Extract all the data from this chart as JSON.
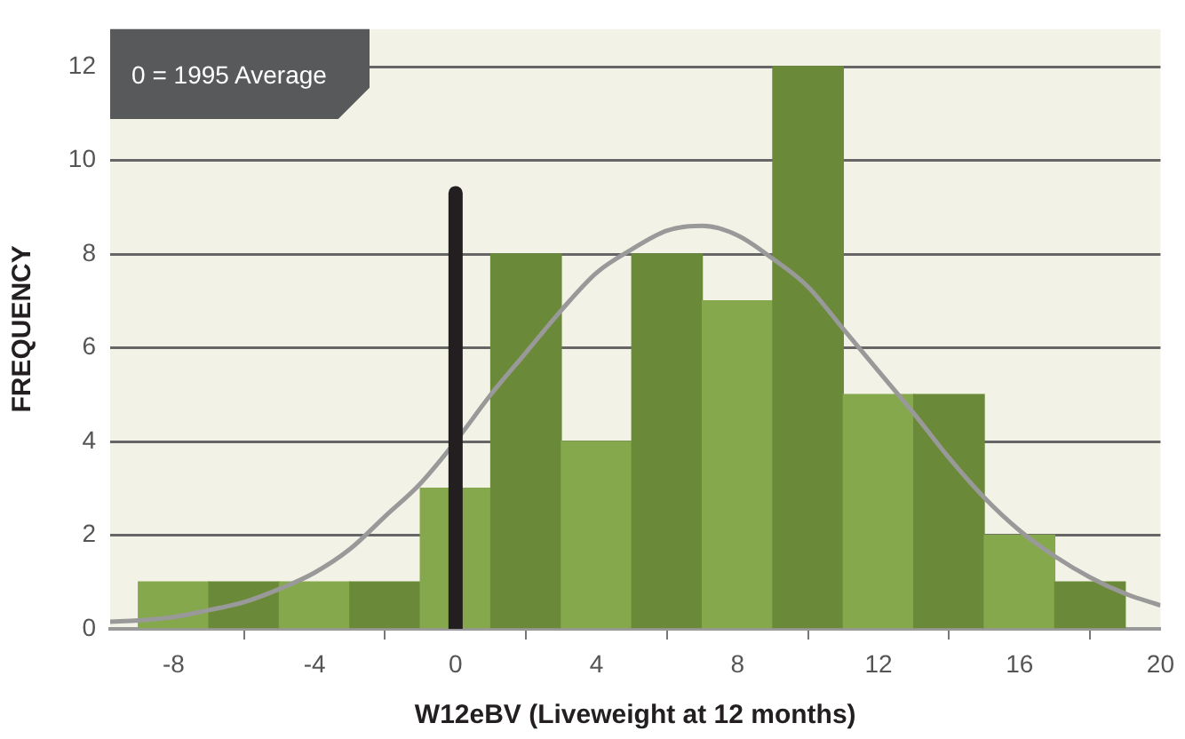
{
  "chart_data": {
    "type": "histogram",
    "xlabel": "W12eBV (Liveweight at 12 months)",
    "ylabel": "FREQUENCY",
    "annotations": [
      "0 = 1995 Average"
    ],
    "bins": [
      -9,
      -7,
      -5,
      -3,
      -1,
      1,
      3,
      5,
      7,
      9,
      11,
      13,
      15,
      17,
      19
    ],
    "values": [
      1,
      1,
      1,
      1,
      3,
      8,
      4,
      8,
      7,
      12,
      5,
      5,
      2,
      1
    ],
    "colors": [
      "#86a84c",
      "#6b8a39",
      "#86a84c",
      "#6b8a39",
      "#86a84c",
      "#6b8a39",
      "#86a84c",
      "#6b8a39",
      "#86a84c",
      "#6b8a39",
      "#86a84c",
      "#6b8a39",
      "#86a84c",
      "#6b8a39"
    ],
    "series": [
      {
        "type": "line",
        "color": "#999999",
        "x": [
          -9.8,
          -9,
          -8,
          -7,
          -6,
          -5,
          -4,
          -3,
          -2,
          -1,
          0,
          1,
          2,
          3,
          4,
          5,
          6,
          7,
          8,
          9,
          10,
          11,
          12,
          13,
          14,
          15,
          16,
          17,
          18,
          19,
          20
        ],
        "values": [
          0.15,
          0.18,
          0.25,
          0.4,
          0.57,
          0.85,
          1.2,
          1.7,
          2.4,
          3.1,
          4,
          5,
          5.9,
          6.8,
          7.6,
          8.1,
          8.5,
          8.6,
          8.4,
          7.9,
          7.3,
          6.4,
          5.5,
          4.6,
          3.65,
          2.8,
          2.1,
          1.55,
          1.1,
          0.75,
          0.5
        ]
      },
      {
        "type": "line",
        "color": "#231f20",
        "x": [
          0,
          0
        ],
        "values": [
          0,
          9.3
        ]
      }
    ],
    "xlim": [
      -9.8,
      20
    ],
    "xticks": [
      -8,
      -4,
      0,
      4,
      8,
      12,
      16,
      20
    ],
    "ylim": [
      0,
      12.8
    ],
    "yticks": [
      0,
      2,
      4,
      6,
      8,
      10,
      12
    ],
    "grid": "y",
    "legend": false
  }
}
